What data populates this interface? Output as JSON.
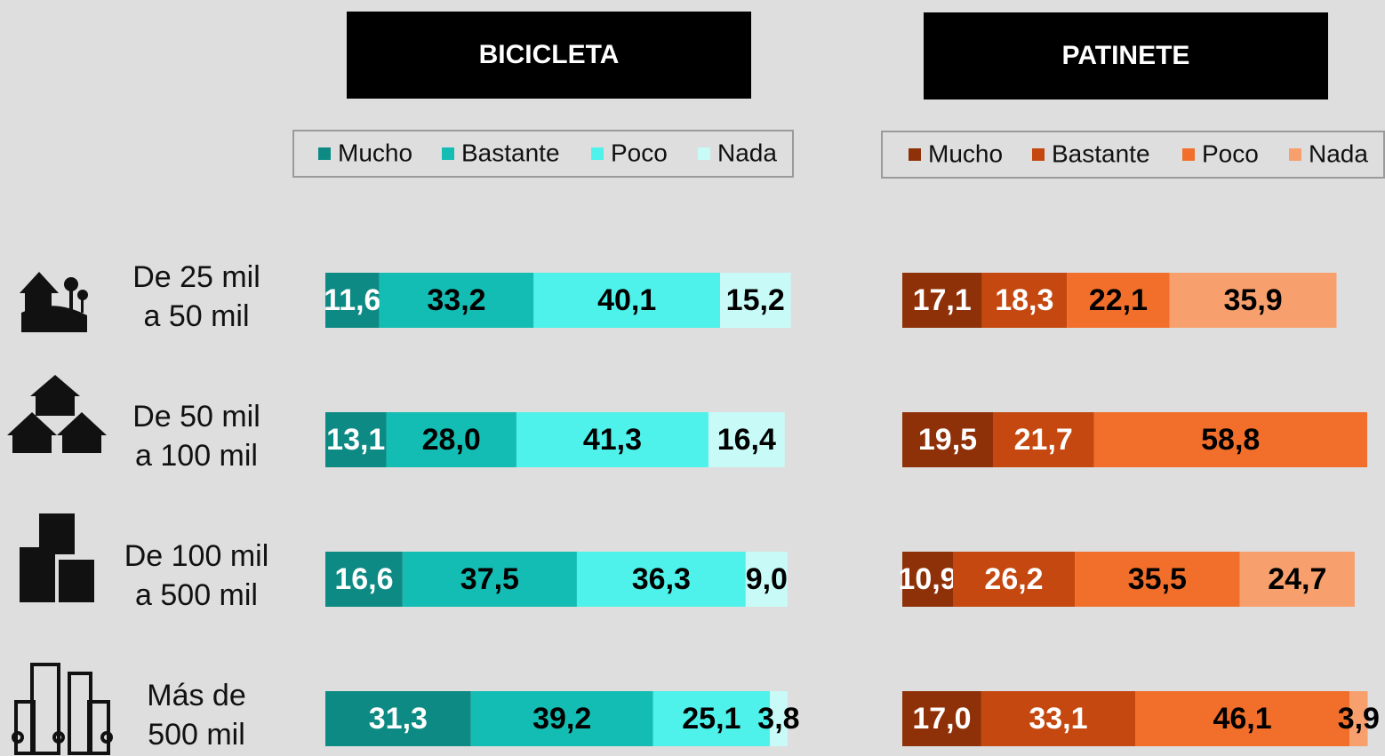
{
  "chart_data": [
    {
      "type": "stacked_barh",
      "title": "BICICLETA",
      "categories": [
        [
          "De 25 mil",
          "a 50 mil"
        ],
        [
          "De 50 mil",
          "a 100 mil"
        ],
        [
          "De 100 mil",
          "a 500 mil"
        ],
        [
          "Más de",
          "500 mil"
        ]
      ],
      "xlim": [
        0,
        100
      ],
      "series": [
        {
          "name": "Mucho",
          "color": "#0e8a84",
          "label_color": "#ffffff",
          "values": [
            11.6,
            13.1,
            16.6,
            31.3
          ],
          "value_labels": [
            "11,6",
            "13,1",
            "16,6",
            "31,3"
          ]
        },
        {
          "name": "Bastante",
          "color": "#13bdb3",
          "label_color": "#000000",
          "values": [
            33.2,
            28.0,
            37.5,
            39.2
          ],
          "value_labels": [
            "33,2",
            "28,0",
            "37,5",
            "39,2"
          ]
        },
        {
          "name": "Poco",
          "color": "#4ef2ea",
          "label_color": "#000000",
          "values": [
            40.1,
            41.3,
            36.3,
            25.1
          ],
          "value_labels": [
            "40,1",
            "41,3",
            "36,3",
            "25,1"
          ]
        },
        {
          "name": "Nada",
          "color": "#c8fbf8",
          "label_color": "#000000",
          "values": [
            15.2,
            16.4,
            9.0,
            3.8
          ],
          "value_labels": [
            "15,2",
            "16,4",
            "9,0",
            "3,8"
          ]
        }
      ]
    },
    {
      "type": "stacked_barh",
      "title": "PATINETE",
      "xlim": [
        0,
        100
      ],
      "series": [
        {
          "name": "Mucho",
          "color": "#8f3108",
          "label_color": "#ffffff",
          "values": [
            17.1,
            19.5,
            10.9,
            17.0
          ],
          "value_labels": [
            "17,1",
            "19,5",
            "10,9",
            "17,0"
          ]
        },
        {
          "name": "Bastante",
          "color": "#c4480f",
          "label_color": "#ffffff",
          "values": [
            18.3,
            21.7,
            26.2,
            33.1
          ],
          "value_labels": [
            "18,3",
            "21,7",
            "26,2",
            "33,1"
          ]
        },
        {
          "name": "Poco",
          "color": "#f26f2b",
          "label_color": "#000000",
          "values": [
            22.1,
            58.8,
            35.5,
            46.1
          ],
          "value_labels": [
            "22,1",
            "58,8",
            "35,5",
            "46,1"
          ]
        },
        {
          "name": "Nada",
          "color": "#f7a06e",
          "label_color": "#000000",
          "values": [
            35.9,
            null,
            24.7,
            3.9
          ],
          "value_labels": [
            "35,9",
            null,
            "24,7",
            "3,9"
          ]
        }
      ]
    }
  ]
}
